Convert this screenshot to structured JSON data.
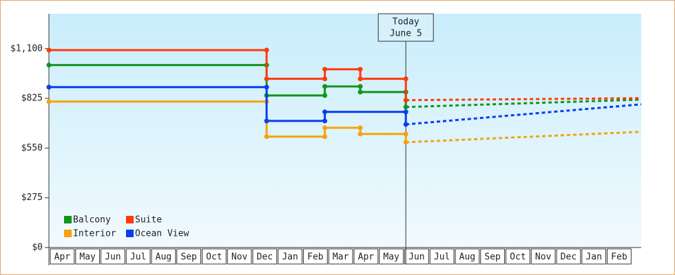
{
  "chart_data": {
    "type": "step",
    "categories": [
      "Apr",
      "May",
      "Jun",
      "Jul",
      "Aug",
      "Sep",
      "Oct",
      "Nov",
      "Dec",
      "Jan",
      "Feb",
      "Mar",
      "Apr",
      "May",
      "Jun",
      "Jul",
      "Aug",
      "Sep",
      "Oct",
      "Nov",
      "Dec",
      "Jan",
      "Feb"
    ],
    "xlim": [
      0,
      23.4
    ],
    "ylim": [
      0,
      1293
    ],
    "yticks": [
      {
        "value": 0,
        "label": "$0"
      },
      {
        "value": 275,
        "label": "$275"
      },
      {
        "value": 550,
        "label": "$550"
      },
      {
        "value": 825,
        "label": "$825"
      },
      {
        "value": 1100,
        "label": "$1,100"
      }
    ],
    "annotation": {
      "x": 14.1,
      "lines": [
        "Today",
        "June 5"
      ]
    },
    "series": [
      {
        "name": "Balcony",
        "color": "#11951a",
        "x": [
          0,
          8.6,
          8.6,
          10.9,
          10.9,
          12.3,
          12.3,
          14.1,
          14.1
        ],
        "values": [
          1009,
          1009,
          841,
          841,
          891,
          891,
          860,
          860,
          777
        ],
        "forecast": {
          "x": [
            23.4
          ],
          "values": [
            818
          ]
        }
      },
      {
        "name": "Suite",
        "color": "#ff3a0a",
        "x": [
          0,
          8.6,
          8.6,
          10.9,
          10.9,
          12.3,
          12.3,
          14.1,
          14.1
        ],
        "values": [
          1092,
          1092,
          933,
          933,
          986,
          986,
          933,
          933,
          815
        ],
        "forecast": {
          "x": [
            23.4
          ],
          "values": [
            826
          ]
        }
      },
      {
        "name": "Interior",
        "color": "#f7a10e",
        "x": [
          0,
          8.6,
          8.6,
          10.9,
          10.9,
          12.3,
          12.3,
          14.1,
          14.1
        ],
        "values": [
          807,
          807,
          613,
          613,
          662,
          662,
          628,
          628,
          582
        ],
        "forecast": {
          "x": [
            23.4
          ],
          "values": [
            640
          ]
        }
      },
      {
        "name": "Ocean View",
        "color": "#0a3cf0",
        "x": [
          0,
          8.6,
          8.6,
          10.9,
          10.9,
          14.1,
          14.1
        ],
        "values": [
          887,
          887,
          700,
          700,
          750,
          750,
          681
        ],
        "forecast": {
          "x": [
            23.4
          ],
          "values": [
            792
          ]
        }
      }
    ]
  }
}
